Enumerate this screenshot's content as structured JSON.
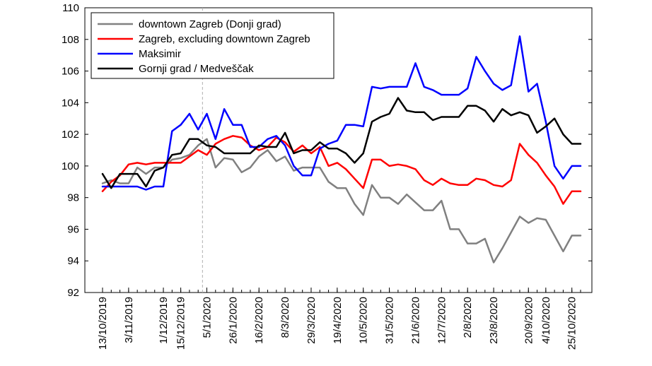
{
  "chart_data": {
    "type": "line",
    "title": "",
    "xlabel": "",
    "ylabel": "",
    "ylim": [
      92,
      110
    ],
    "yticks": [
      92,
      94,
      96,
      98,
      100,
      102,
      104,
      106,
      108,
      110
    ],
    "grid": false,
    "legend_position": "top-left",
    "x": [
      "13/10/2019",
      "20/10/2019",
      "27/10/2019",
      "3/11/2019",
      "10/11/2019",
      "17/11/2019",
      "24/11/2019",
      "1/12/2019",
      "8/12/2019",
      "15/12/2019",
      "22/12/2019",
      "29/12/2019",
      "5/1/2020",
      "12/1/2020",
      "19/1/2020",
      "26/1/2020",
      "2/2/2020",
      "9/2/2020",
      "16/2/2020",
      "23/2/2020",
      "1/3/2020",
      "8/3/2020",
      "15/3/2020",
      "22/3/2020",
      "29/3/2020",
      "5/4/2020",
      "12/4/2020",
      "19/4/2020",
      "26/4/2020",
      "3/5/2020",
      "10/5/2020",
      "17/5/2020",
      "24/5/2020",
      "31/5/2020",
      "7/6/2020",
      "14/6/2020",
      "21/6/2020",
      "28/6/2020",
      "5/7/2020",
      "12/7/2020",
      "19/7/2020",
      "26/7/2020",
      "2/8/2020",
      "9/8/2020",
      "16/8/2020",
      "23/8/2020",
      "30/8/2020",
      "6/9/2020",
      "13/9/2020",
      "20/9/2020",
      "27/9/2020",
      "4/10/2020",
      "11/10/2020",
      "18/10/2020",
      "25/10/2020",
      "1/11/2020"
    ],
    "tick_labels": [
      "13/10/2019",
      "3/11/2019",
      "1/12/2019",
      "15/12/2019",
      "5/1/2020",
      "26/1/2020",
      "16/2/2020",
      "8/3/2020",
      "29/3/2020",
      "19/4/2020",
      "10/5/2020",
      "31/5/2020",
      "21/6/2020",
      "12/7/2020",
      "2/8/2020",
      "23/8/2020",
      "20/9/2020",
      "4/10/2020",
      "25/10/2020"
    ],
    "series": [
      {
        "name": "downtown Zagreb (Donji grad)",
        "color": "#808080",
        "values": [
          98.9,
          99.1,
          98.9,
          98.9,
          99.9,
          99.5,
          99.9,
          99.9,
          100.4,
          100.5,
          100.7,
          101.3,
          101.7,
          99.9,
          100.5,
          100.4,
          99.6,
          99.9,
          100.6,
          101.0,
          100.3,
          100.6,
          99.7,
          99.9,
          99.9,
          99.9,
          99.0,
          98.6,
          98.6,
          97.6,
          96.9,
          98.8,
          98.0,
          98.0,
          97.6,
          98.2,
          97.7,
          97.2,
          97.2,
          97.8,
          96.0,
          96.0,
          95.1,
          95.1,
          95.4,
          93.9,
          94.8,
          95.8,
          96.8,
          96.4,
          96.7,
          96.6,
          95.6,
          94.6,
          95.6,
          95.6
        ]
      },
      {
        "name": "Zagreb, excluding downtown Zagreb",
        "color": "#ff0000",
        "values": [
          98.4,
          99.0,
          99.4,
          100.1,
          100.2,
          100.1,
          100.2,
          100.2,
          100.2,
          100.2,
          100.6,
          101.0,
          100.7,
          101.4,
          101.7,
          101.9,
          101.8,
          101.3,
          101.0,
          101.2,
          101.8,
          101.5,
          100.9,
          101.3,
          100.8,
          101.2,
          100.0,
          100.2,
          99.8,
          99.2,
          98.6,
          100.4,
          100.4,
          100.0,
          100.1,
          100.0,
          99.8,
          99.1,
          98.8,
          99.2,
          98.9,
          98.8,
          98.8,
          99.2,
          99.1,
          98.8,
          98.7,
          99.1,
          101.4,
          100.7,
          100.2,
          99.4,
          98.7,
          97.6,
          98.4,
          98.4
        ]
      },
      {
        "name": "Maksimir",
        "color": "#0000ff",
        "values": [
          98.7,
          98.7,
          98.7,
          98.7,
          98.7,
          98.5,
          98.7,
          98.7,
          102.2,
          102.6,
          103.3,
          102.3,
          103.3,
          101.7,
          103.6,
          102.6,
          102.6,
          101.2,
          101.2,
          101.7,
          101.9,
          101.3,
          100.0,
          99.4,
          99.4,
          101.1,
          101.4,
          101.6,
          102.6,
          102.6,
          102.5,
          105.0,
          104.9,
          105.0,
          105.0,
          105.0,
          106.5,
          105.0,
          104.8,
          104.5,
          104.5,
          104.5,
          104.9,
          106.9,
          106.0,
          105.2,
          104.8,
          105.1,
          108.2,
          104.7,
          105.2,
          102.8,
          100.0,
          99.2,
          100.0,
          100.0
        ]
      },
      {
        "name": "Gornji grad / Medveščak",
        "color": "#000000",
        "values": [
          99.5,
          98.6,
          99.5,
          99.5,
          99.5,
          98.7,
          99.7,
          99.9,
          100.7,
          100.8,
          101.7,
          101.7,
          101.3,
          101.2,
          100.8,
          100.8,
          100.8,
          100.8,
          101.3,
          101.2,
          101.2,
          102.1,
          100.8,
          101.0,
          101.0,
          101.5,
          101.1,
          101.1,
          100.8,
          100.2,
          100.8,
          102.8,
          103.1,
          103.3,
          104.3,
          103.5,
          103.4,
          103.4,
          102.9,
          103.1,
          103.1,
          103.1,
          103.8,
          103.8,
          103.5,
          102.8,
          103.6,
          103.2,
          103.4,
          103.2,
          102.1,
          102.5,
          103.0,
          102.0,
          101.4,
          101.4
        ]
      }
    ]
  }
}
